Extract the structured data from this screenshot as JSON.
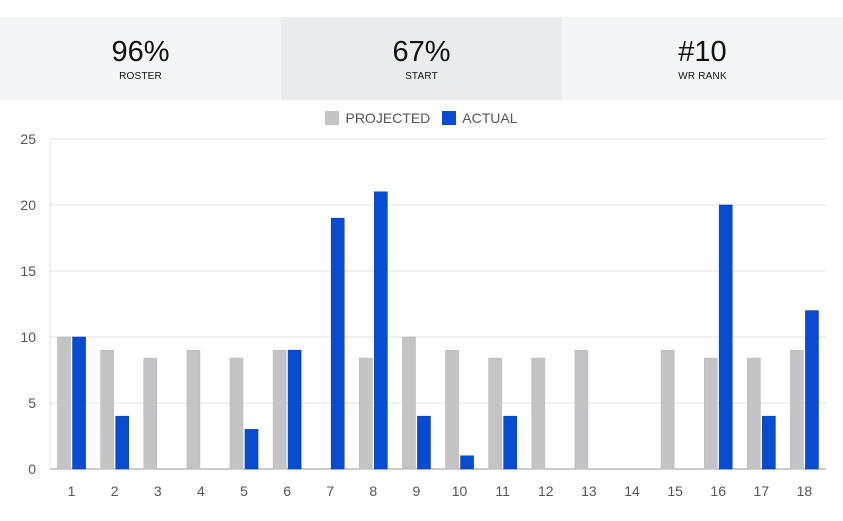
{
  "stats": [
    {
      "value": "96%",
      "label": "ROSTER"
    },
    {
      "value": "67%",
      "label": "START"
    },
    {
      "value": "#10",
      "label": "WR RANK"
    }
  ],
  "colors": {
    "projected": "#c4c4c6",
    "actual": "#0a4cd0",
    "grid": "#e3e3e3"
  },
  "chart_data": {
    "type": "bar",
    "legend_position": "top",
    "grid": true,
    "categories": [
      "1",
      "2",
      "3",
      "4",
      "5",
      "6",
      "7",
      "8",
      "9",
      "10",
      "11",
      "12",
      "13",
      "14",
      "15",
      "16",
      "17",
      "18"
    ],
    "ylim": [
      0,
      25
    ],
    "yticks": [
      0,
      5,
      10,
      15,
      20,
      25
    ],
    "series": [
      {
        "name": "PROJECTED",
        "values": [
          10,
          9,
          8.4,
          9,
          8.4,
          9,
          0,
          8.4,
          10,
          9,
          8.4,
          8.4,
          9,
          0,
          9,
          8.4,
          8.4,
          9
        ]
      },
      {
        "name": "ACTUAL",
        "values": [
          10,
          4,
          0,
          0,
          3,
          9,
          19,
          21,
          4,
          1,
          4,
          0,
          0,
          0,
          0,
          20,
          4,
          12
        ]
      }
    ]
  }
}
